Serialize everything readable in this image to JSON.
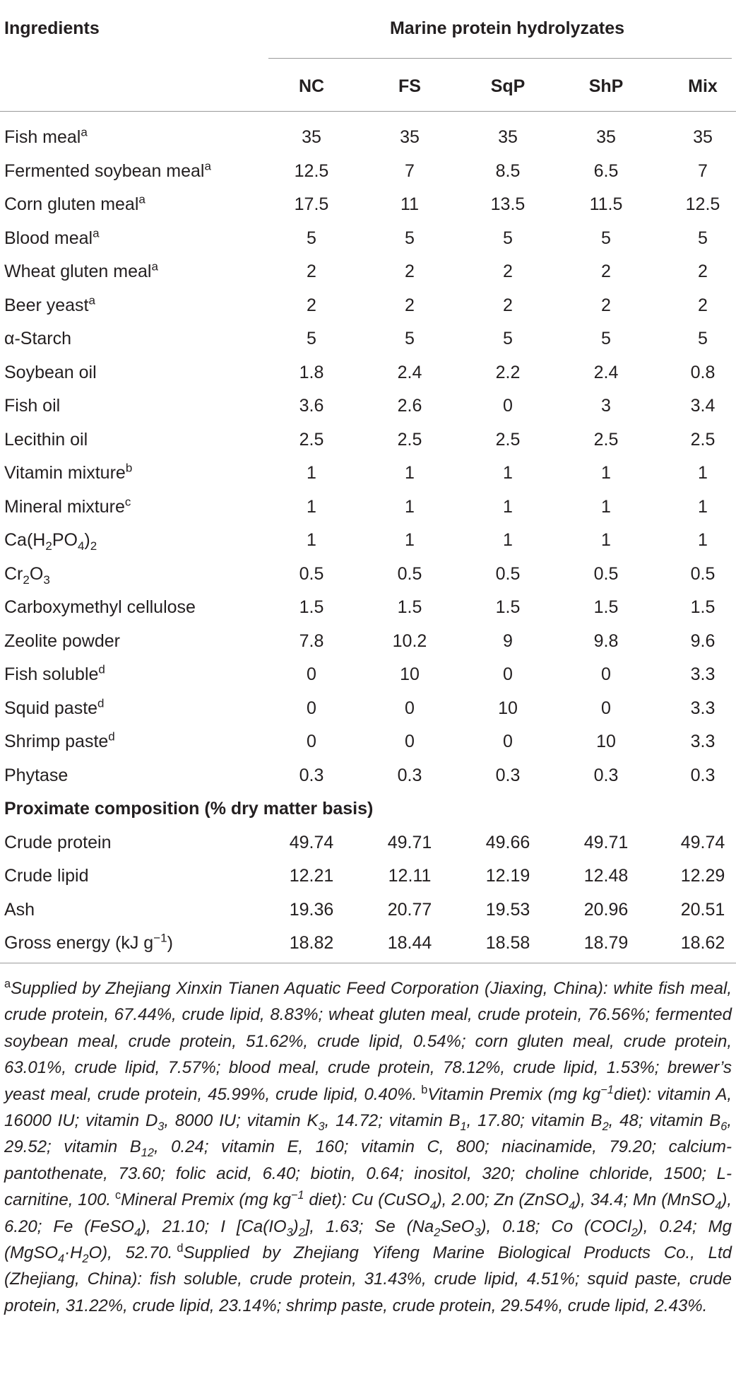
{
  "table": {
    "header": {
      "first": "Ingredients",
      "group": "Marine protein hydrolyzates",
      "columns": [
        "NC",
        "FS",
        "SqP",
        "ShP",
        "Mix"
      ]
    },
    "rows": [
      {
        "label": [
          "Fish meal",
          {
            "sup": "a"
          }
        ],
        "values": [
          35,
          35,
          35,
          35,
          35
        ]
      },
      {
        "label": [
          "Fermented soybean meal",
          {
            "sup": "a"
          }
        ],
        "values": [
          12.5,
          7,
          8.5,
          6.5,
          7
        ]
      },
      {
        "label": [
          "Corn gluten meal",
          {
            "sup": "a"
          }
        ],
        "values": [
          17.5,
          11,
          13.5,
          11.5,
          12.5
        ]
      },
      {
        "label": [
          "Blood meal",
          {
            "sup": "a"
          }
        ],
        "values": [
          5,
          5,
          5,
          5,
          5
        ]
      },
      {
        "label": [
          "Wheat gluten meal",
          {
            "sup": "a"
          }
        ],
        "values": [
          2,
          2,
          2,
          2,
          2
        ]
      },
      {
        "label": [
          "Beer yeast",
          {
            "sup": "a"
          }
        ],
        "values": [
          2,
          2,
          2,
          2,
          2
        ]
      },
      {
        "label": [
          "α-Starch"
        ],
        "values": [
          5,
          5,
          5,
          5,
          5
        ]
      },
      {
        "label": [
          "Soybean oil"
        ],
        "values": [
          1.8,
          2.4,
          2.2,
          2.4,
          0.8
        ]
      },
      {
        "label": [
          "Fish oil"
        ],
        "values": [
          3.6,
          2.6,
          0,
          3,
          3.4
        ]
      },
      {
        "label": [
          "Lecithin oil"
        ],
        "values": [
          2.5,
          2.5,
          2.5,
          2.5,
          2.5
        ]
      },
      {
        "label": [
          "Vitamin mixture",
          {
            "sup": "b"
          }
        ],
        "values": [
          1,
          1,
          1,
          1,
          1
        ]
      },
      {
        "label": [
          "Mineral mixture",
          {
            "sup": "c"
          }
        ],
        "values": [
          1,
          1,
          1,
          1,
          1
        ]
      },
      {
        "label": [
          "Ca(H",
          {
            "sub": "2"
          },
          "PO",
          {
            "sub": "4"
          },
          ")",
          {
            "sub": "2"
          }
        ],
        "values": [
          1,
          1,
          1,
          1,
          1
        ]
      },
      {
        "label": [
          "Cr",
          {
            "sub": "2"
          },
          "O",
          {
            "sub": "3"
          }
        ],
        "values": [
          0.5,
          0.5,
          0.5,
          0.5,
          0.5
        ]
      },
      {
        "label": [
          "Carboxymethyl cellulose"
        ],
        "values": [
          1.5,
          1.5,
          1.5,
          1.5,
          1.5
        ]
      },
      {
        "label": [
          "Zeolite powder"
        ],
        "values": [
          7.8,
          10.2,
          9,
          9.8,
          9.6
        ]
      },
      {
        "label": [
          "Fish soluble",
          {
            "sup": "d"
          }
        ],
        "values": [
          0,
          10,
          0,
          0,
          3.3
        ]
      },
      {
        "label": [
          "Squid paste",
          {
            "sup": "d"
          }
        ],
        "values": [
          0,
          0,
          10,
          0,
          3.3
        ]
      },
      {
        "label": [
          "Shrimp paste",
          {
            "sup": "d"
          }
        ],
        "values": [
          0,
          0,
          0,
          10,
          3.3
        ]
      },
      {
        "label": [
          "Phytase"
        ],
        "values": [
          0.3,
          0.3,
          0.3,
          0.3,
          0.3
        ]
      }
    ],
    "section": "Proximate composition (% dry matter basis)",
    "composition": [
      {
        "label": [
          "Crude protein"
        ],
        "values": [
          49.74,
          49.71,
          49.66,
          49.71,
          49.74
        ]
      },
      {
        "label": [
          "Crude lipid"
        ],
        "values": [
          12.21,
          12.11,
          12.19,
          12.48,
          12.29
        ]
      },
      {
        "label": [
          "Ash"
        ],
        "values": [
          19.36,
          20.77,
          19.53,
          20.96,
          20.51
        ]
      },
      {
        "label": [
          "Gross energy (kJ g",
          {
            "sup": "−1"
          },
          ")"
        ],
        "values": [
          18.82,
          18.44,
          18.58,
          18.79,
          18.62
        ]
      }
    ]
  },
  "footnotes": [
    {
      "mark": "a",
      "text": [
        "Supplied by Zhejiang Xinxin Tianen Aquatic Feed Corporation (Jiaxing, China): white fish meal, crude protein, 67.44%, crude lipid, 8.83%; wheat gluten meal, crude protein, 76.56%; fermented soybean meal, crude protein, 51.62%, crude lipid, 0.54%; corn gluten meal, crude protein, 63.01%, crude lipid, 7.57%; blood meal, crude protein, 78.12%, crude lipid, 1.53%; brewer’s yeast meal, crude protein, 45.99%, crude lipid, 0.40%."
      ]
    },
    {
      "mark": "b",
      "text": [
        "Vitamin Premix (mg kg",
        {
          "sup": "−1"
        },
        "diet): vitamin A, 16000 IU; vitamin D",
        {
          "sub": "3"
        },
        ", 8000 IU; vitamin K",
        {
          "sub": "3"
        },
        ", 14.72; vitamin B",
        {
          "sub": "1"
        },
        ", 17.80; vitamin B",
        {
          "sub": "2"
        },
        ", 48; vitamin B",
        {
          "sub": "6"
        },
        ", 29.52; vitamin B",
        {
          "sub": "12"
        },
        ", 0.24; vitamin E, 160; vitamin C, 800; niacinamide, 79.20; calcium-pantothenate, 73.60; folic acid, 6.40; biotin, 0.64; inositol, 320; choline chloride, 1500; L-carnitine, 100."
      ]
    },
    {
      "mark": "c",
      "text": [
        "Mineral Premix (mg kg",
        {
          "sup": "−1"
        },
        " diet): Cu (CuSO",
        {
          "sub": "4"
        },
        "), 2.00; Zn (ZnSO",
        {
          "sub": "4"
        },
        "), 34.4; Mn (MnSO",
        {
          "sub": "4"
        },
        "), 6.20; Fe (FeSO",
        {
          "sub": "4"
        },
        "), 21.10; I [Ca(IO",
        {
          "sub": "3"
        },
        ")",
        {
          "sub": "2"
        },
        "], 1.63; Se (Na",
        {
          "sub": "2"
        },
        "SeO",
        {
          "sub": "3"
        },
        "), 0.18; Co (COCl",
        {
          "sub": "2"
        },
        "), 0.24; Mg (MgSO",
        {
          "sub": "4"
        },
        "·H",
        {
          "sub": "2"
        },
        "O), 52.70."
      ]
    },
    {
      "mark": "d",
      "text": [
        "Supplied by Zhejiang Yifeng Marine Biological Products Co., Ltd (Zhejiang, China): fish soluble, crude protein, 31.43%, crude lipid, 4.51%; squid paste, crude protein, 31.22%, crude lipid, 23.14%; shrimp paste, crude protein, 29.54%, crude lipid, 2.43%."
      ]
    }
  ]
}
